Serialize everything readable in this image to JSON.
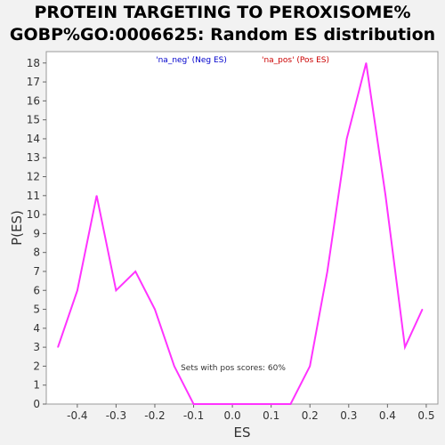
{
  "title_line1": "PROTEIN TARGETING TO PEROXISOME%",
  "title_line2": "GOBP%GO:0006625: Random ES distribution",
  "colors": {
    "neg_legend": "#0000cc",
    "pos_legend": "#cc0000",
    "series_line": "#ff33ff",
    "plot_background": "#ffffff",
    "page_background": "#f2f2f2"
  },
  "chart_data": {
    "type": "line",
    "xlabel": "ES",
    "ylabel": "P(ES)",
    "xlim": [
      -0.48,
      0.53
    ],
    "ylim": [
      0,
      18.6
    ],
    "xticks": [
      -0.4,
      -0.3,
      -0.2,
      -0.1,
      0.0,
      0.1,
      0.2,
      0.3,
      0.4,
      0.5
    ],
    "xtick_labels": [
      "-0.4",
      "-0.3",
      "-0.2",
      "-0.1",
      "0.0",
      "0.1",
      "0.2",
      "0.3",
      "0.4",
      "0.5"
    ],
    "yticks": [
      0,
      1,
      2,
      3,
      4,
      5,
      6,
      7,
      8,
      9,
      10,
      11,
      12,
      13,
      14,
      15,
      16,
      17,
      18
    ],
    "grid": false,
    "legend": [
      {
        "label": "'na_neg' (Neg ES)",
        "color": "#0000cc"
      },
      {
        "label": "'na_pos' (Pos ES)",
        "color": "#cc0000"
      }
    ],
    "legend_placement": "top",
    "annotation": "Sets with pos scores: 60%",
    "series": [
      {
        "color": "#ff33ff",
        "x": [
          -0.45,
          -0.4,
          -0.35,
          -0.3,
          -0.25,
          -0.2,
          -0.15,
          -0.1,
          -0.05,
          0.0,
          0.05,
          0.1,
          0.15,
          0.2,
          0.245,
          0.295,
          0.345,
          0.395,
          0.445,
          0.49
        ],
        "y": [
          3,
          6,
          11,
          6,
          7,
          5,
          2,
          0,
          0,
          0,
          0,
          0,
          0,
          2,
          7,
          14,
          18,
          11,
          3,
          5
        ]
      }
    ]
  }
}
